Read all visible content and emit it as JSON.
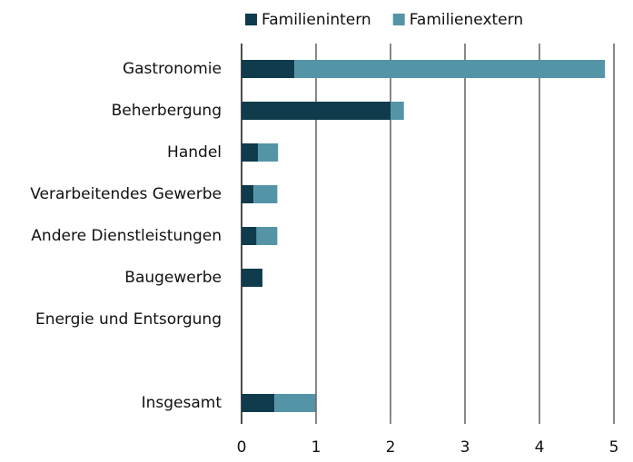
{
  "chart_data": {
    "type": "bar",
    "orientation": "horizontal",
    "stacked": true,
    "categories": [
      "Gastronomie",
      "Beherbergung",
      "Handel",
      "Verarbeitendes Gewerbe",
      "Andere Dienstleistungen",
      "Baugewerbe",
      "Energie und Entsorgung",
      null,
      "Insgesamt"
    ],
    "series": [
      {
        "name": "Familienintern",
        "color": "#0f3b4c",
        "values": [
          0.71,
          2.0,
          0.22,
          0.16,
          0.2,
          0.28,
          0,
          null,
          0.44
        ]
      },
      {
        "name": "Familienextern",
        "color": "#5494a7",
        "values": [
          4.17,
          0.18,
          0.27,
          0.32,
          0.28,
          0,
          0,
          null,
          0.55
        ]
      }
    ],
    "xlim": [
      0,
      5
    ],
    "xticks": [
      0,
      1,
      2,
      3,
      4,
      5
    ],
    "grid": true,
    "legend": "top"
  }
}
